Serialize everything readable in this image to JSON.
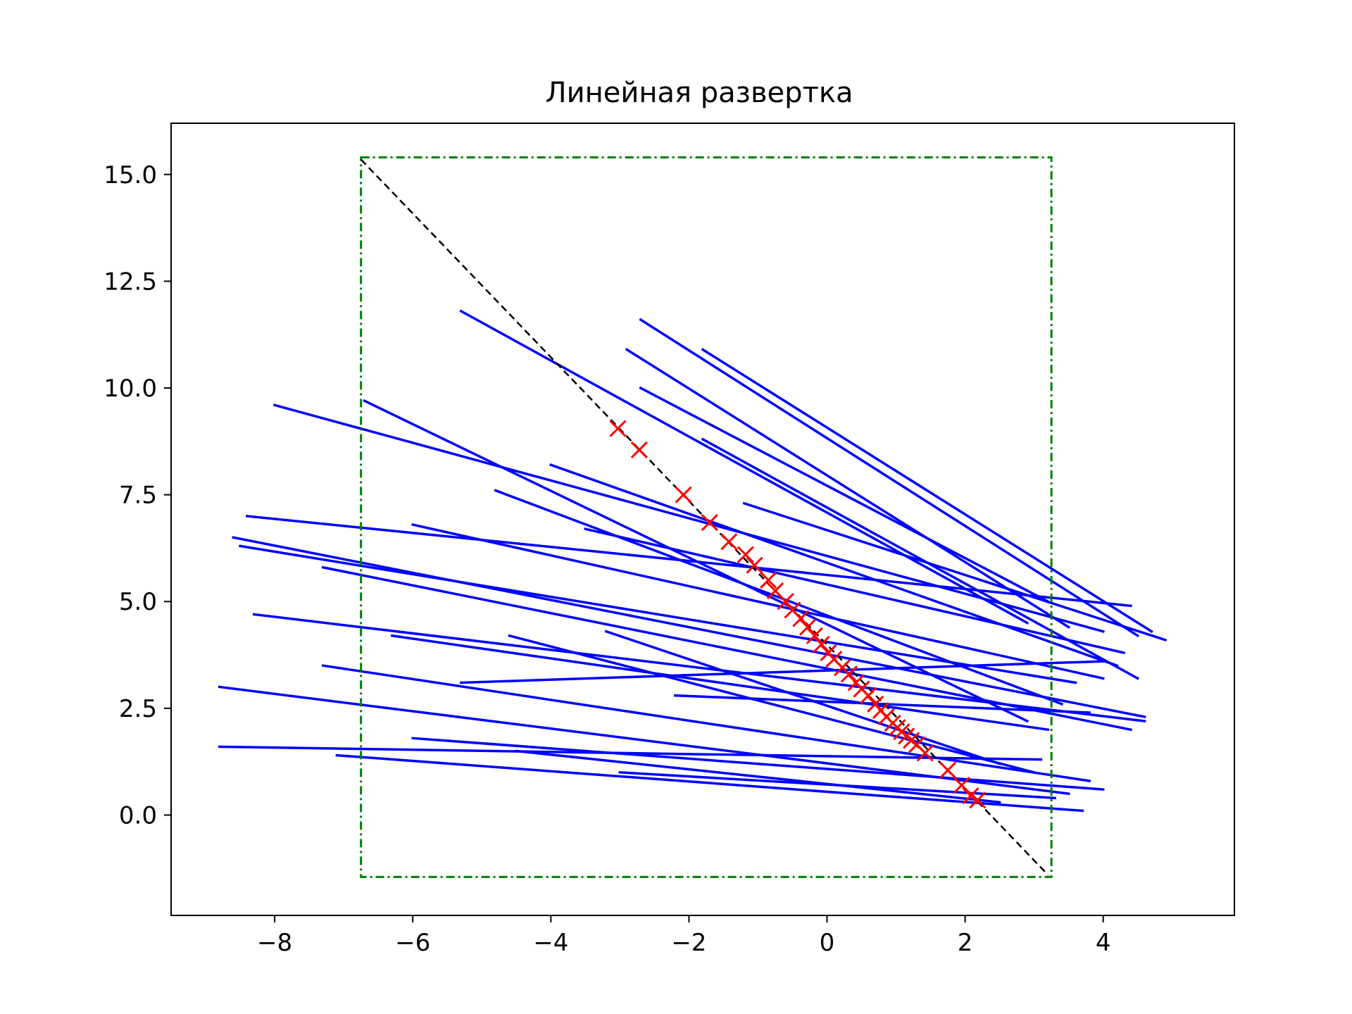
{
  "chart_data": {
    "type": "line",
    "title": "Линейная развертка",
    "xlabel": "",
    "ylabel": "",
    "xlim": [
      -9.5,
      5.9
    ],
    "ylim": [
      -2.35,
      16.2
    ],
    "xticks": [
      {
        "value": -8,
        "label": "−8"
      },
      {
        "value": -6,
        "label": "−6"
      },
      {
        "value": -4,
        "label": "−4"
      },
      {
        "value": -2,
        "label": "−2"
      },
      {
        "value": 0,
        "label": "0"
      },
      {
        "value": 2,
        "label": "2"
      },
      {
        "value": 4,
        "label": "4"
      }
    ],
    "yticks": [
      {
        "value": 0.0,
        "label": "0.0"
      },
      {
        "value": 2.5,
        "label": "2.5"
      },
      {
        "value": 5.0,
        "label": "5.0"
      },
      {
        "value": 7.5,
        "label": "7.5"
      },
      {
        "value": 10.0,
        "label": "10.0"
      },
      {
        "value": 12.5,
        "label": "12.5"
      },
      {
        "value": 15.0,
        "label": "15.0"
      }
    ],
    "grid": false,
    "legend": "none",
    "colors": {
      "segments": "#0000ff",
      "markers": "#ff0000",
      "bounding_box": "#008000",
      "diagonal": "#000000"
    },
    "bounding_box": {
      "x": [
        -6.75,
        3.25
      ],
      "y": [
        -1.45,
        15.4
      ]
    },
    "diagonal": {
      "x": [
        -6.75,
        3.2
      ],
      "y": [
        15.35,
        -1.4
      ]
    },
    "segments": [
      [
        -8.0,
        9.6,
        4.0,
        4.3
      ],
      [
        -8.6,
        6.5,
        4.6,
        2.3
      ],
      [
        -8.4,
        7.0,
        4.4,
        4.9
      ],
      [
        -8.5,
        6.3,
        3.6,
        3.1
      ],
      [
        -7.3,
        5.8,
        4.4,
        2.0
      ],
      [
        -8.8,
        3.0,
        3.5,
        0.5
      ],
      [
        -8.8,
        1.6,
        3.1,
        1.3
      ],
      [
        -7.1,
        1.4,
        3.7,
        0.1
      ],
      [
        -7.3,
        3.5,
        3.8,
        0.8
      ],
      [
        -8.3,
        4.7,
        4.6,
        2.2
      ],
      [
        -6.7,
        9.7,
        2.9,
        2.2
      ],
      [
        -5.3,
        11.8,
        2.9,
        4.5
      ],
      [
        -2.7,
        11.6,
        4.5,
        4.2
      ],
      [
        -1.8,
        10.9,
        4.7,
        4.3
      ],
      [
        -2.9,
        10.9,
        3.5,
        4.4
      ],
      [
        -2.7,
        10.0,
        3.2,
        5.0
      ],
      [
        -4.0,
        8.2,
        4.2,
        3.5
      ],
      [
        -4.8,
        7.6,
        3.4,
        2.6
      ],
      [
        -6.0,
        6.8,
        4.0,
        3.2
      ],
      [
        -6.3,
        4.2,
        3.2,
        2.0
      ],
      [
        -4.6,
        4.2,
        3.0,
        1.0
      ],
      [
        -6.0,
        1.8,
        4.0,
        0.6
      ],
      [
        -4.5,
        1.5,
        2.5,
        0.3
      ],
      [
        -3.0,
        1.0,
        3.3,
        0.4
      ],
      [
        -5.3,
        3.1,
        4.0,
        3.6
      ],
      [
        -3.5,
        6.7,
        4.3,
        3.8
      ],
      [
        -1.8,
        8.8,
        4.5,
        3.2
      ],
      [
        -1.2,
        7.3,
        4.9,
        4.1
      ],
      [
        -3.2,
        4.3,
        2.5,
        1.2
      ],
      [
        -2.2,
        2.8,
        3.8,
        2.4
      ]
    ],
    "points": {
      "x": [
        -3.03,
        -2.72,
        -2.08,
        -1.7,
        -1.42,
        -1.18,
        -1.05,
        -0.85,
        -0.75,
        -0.6,
        -0.5,
        -0.38,
        -0.28,
        -0.18,
        -0.08,
        0.02,
        0.1,
        0.22,
        0.32,
        0.42,
        0.5,
        0.6,
        0.7,
        0.78,
        0.86,
        0.95,
        1.02,
        1.08,
        1.15,
        1.22,
        1.3,
        1.42,
        1.75,
        1.95,
        2.08,
        2.18
      ],
      "y": [
        9.05,
        8.55,
        7.5,
        6.85,
        6.4,
        6.1,
        5.85,
        5.5,
        5.25,
        5.0,
        4.8,
        4.6,
        4.4,
        4.2,
        4.0,
        3.8,
        3.65,
        3.45,
        3.3,
        3.1,
        2.95,
        2.8,
        2.6,
        2.45,
        2.3,
        2.15,
        2.05,
        1.95,
        1.85,
        1.75,
        1.65,
        1.45,
        1.05,
        0.7,
        0.45,
        0.35
      ]
    }
  }
}
